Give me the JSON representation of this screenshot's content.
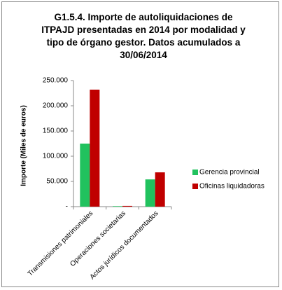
{
  "chart_data": {
    "type": "bar",
    "title": "G1.5.4.  Importe de autoliquidaciones de ITPAJD presentadas en 2014 por modalidad y tipo de órgano gestor. Datos acumulados a 30/06/2014",
    "y_label": "Importe (Miles de euros)",
    "categories": [
      "Transmisiones patrimoniales",
      "Operaciones societarias",
      "Actos jurídicos documentados"
    ],
    "series": [
      {
        "name": "Gerencia provincial",
        "color": "#21c25e",
        "values": [
          125000,
          1000,
          54000
        ]
      },
      {
        "name": "Oficinas liquidadoras",
        "color": "#c00000",
        "values": [
          232000,
          1500,
          68000
        ]
      }
    ],
    "ylim": [
      0,
      250000
    ],
    "yticks": [
      {
        "value": 0,
        "label": "-"
      },
      {
        "value": 50000,
        "label": "50.000"
      },
      {
        "value": 100000,
        "label": "100.000"
      },
      {
        "value": 150000,
        "label": "150.000"
      },
      {
        "value": 200000,
        "label": "200.000"
      },
      {
        "value": 250000,
        "label": "250.000"
      }
    ],
    "legend": "right"
  }
}
